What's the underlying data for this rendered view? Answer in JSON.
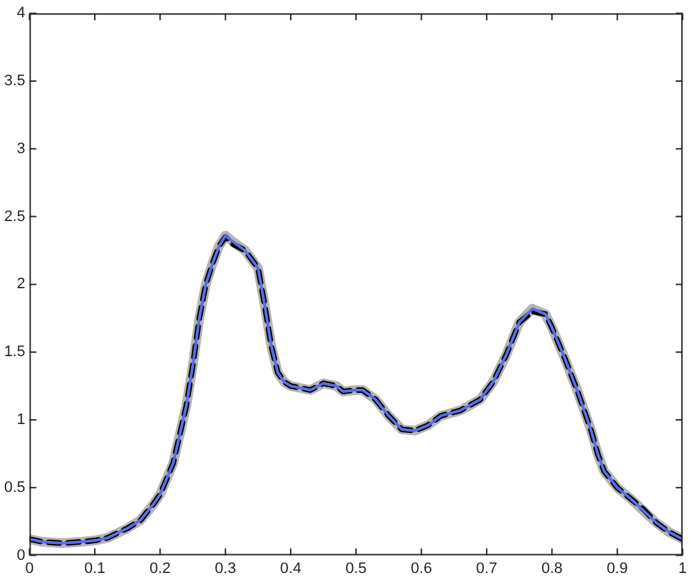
{
  "chart_data": {
    "type": "line",
    "x": [
      0,
      0.02,
      0.05,
      0.08,
      0.1,
      0.12,
      0.15,
      0.17,
      0.19,
      0.2,
      0.22,
      0.24,
      0.25,
      0.26,
      0.27,
      0.28,
      0.29,
      0.3,
      0.31,
      0.33,
      0.35,
      0.36,
      0.37,
      0.38,
      0.39,
      0.4,
      0.42,
      0.43,
      0.45,
      0.47,
      0.48,
      0.5,
      0.51,
      0.53,
      0.55,
      0.57,
      0.59,
      0.61,
      0.63,
      0.66,
      0.69,
      0.71,
      0.73,
      0.75,
      0.77,
      0.79,
      0.8,
      0.82,
      0.84,
      0.86,
      0.87,
      0.88,
      0.9,
      0.92,
      0.94,
      0.96,
      0.98,
      1
    ],
    "series": [
      {
        "color": "#b4b4b4",
        "line_style": "solid",
        "values": [
          0.12,
          0.1,
          0.09,
          0.1,
          0.11,
          0.13,
          0.2,
          0.26,
          0.38,
          0.45,
          0.68,
          1.1,
          1.4,
          1.75,
          2.0,
          2.15,
          2.28,
          2.36,
          2.32,
          2.25,
          2.12,
          1.85,
          1.55,
          1.35,
          1.28,
          1.25,
          1.23,
          1.22,
          1.27,
          1.25,
          1.21,
          1.22,
          1.22,
          1.15,
          1.03,
          0.93,
          0.92,
          0.96,
          1.03,
          1.07,
          1.15,
          1.28,
          1.48,
          1.72,
          1.82,
          1.78,
          1.68,
          1.45,
          1.2,
          0.92,
          0.75,
          0.62,
          0.5,
          0.42,
          0.33,
          0.24,
          0.17,
          0.12
        ]
      },
      {
        "color": "#000000",
        "line_style": "dashed",
        "values": [
          0.12,
          0.1,
          0.09,
          0.1,
          0.11,
          0.13,
          0.2,
          0.26,
          0.38,
          0.45,
          0.68,
          1.1,
          1.4,
          1.75,
          2.0,
          2.15,
          2.28,
          2.35,
          2.3,
          2.25,
          2.12,
          1.85,
          1.55,
          1.35,
          1.28,
          1.25,
          1.23,
          1.22,
          1.27,
          1.25,
          1.21,
          1.22,
          1.22,
          1.15,
          1.03,
          0.93,
          0.92,
          0.96,
          1.03,
          1.07,
          1.15,
          1.28,
          1.48,
          1.72,
          1.8,
          1.78,
          1.68,
          1.45,
          1.2,
          0.92,
          0.75,
          0.62,
          0.5,
          0.42,
          0.34,
          0.24,
          0.17,
          0.12
        ]
      },
      {
        "color": "#5a6ee8",
        "line_style": "solid",
        "values": [
          0.12,
          0.1,
          0.09,
          0.1,
          0.11,
          0.13,
          0.2,
          0.26,
          0.38,
          0.45,
          0.68,
          1.1,
          1.4,
          1.75,
          2.0,
          2.15,
          2.28,
          2.36,
          2.32,
          2.25,
          2.12,
          1.85,
          1.55,
          1.35,
          1.28,
          1.25,
          1.23,
          1.22,
          1.27,
          1.25,
          1.21,
          1.22,
          1.22,
          1.15,
          1.03,
          0.93,
          0.92,
          0.96,
          1.03,
          1.07,
          1.15,
          1.28,
          1.48,
          1.72,
          1.82,
          1.78,
          1.68,
          1.45,
          1.2,
          0.92,
          0.75,
          0.62,
          0.5,
          0.42,
          0.33,
          0.24,
          0.17,
          0.12
        ]
      }
    ],
    "xlim": [
      0,
      1
    ],
    "xticks": [
      0,
      0.1,
      0.2,
      0.3,
      0.4,
      0.5,
      0.6,
      0.7,
      0.8,
      0.9,
      1
    ],
    "ylim": [
      0,
      4
    ],
    "yticks": [
      0,
      0.5,
      1,
      1.5,
      2,
      2.5,
      3,
      3.5,
      4
    ],
    "grid": false,
    "legend": false,
    "marker": "none"
  }
}
